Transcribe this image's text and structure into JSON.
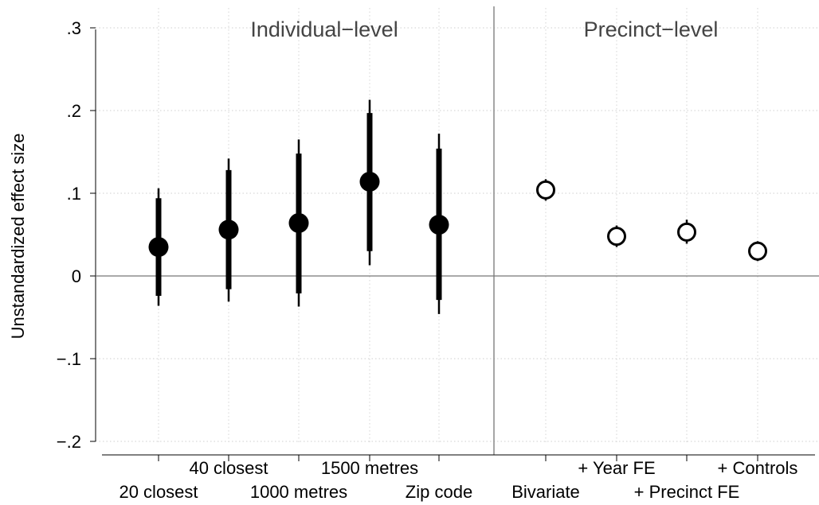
{
  "chart_data": {
    "type": "scatter",
    "ylabel": "Unstandardized effect size",
    "ylim": [
      -0.2,
      0.3
    ],
    "yticks": [
      -0.2,
      -0.1,
      0,
      0.1,
      0.2,
      0.3
    ],
    "ytick_labels": [
      "−.2",
      "−.1",
      "0",
      ".1",
      ".2",
      ".3"
    ],
    "grid": true,
    "panels": [
      {
        "title": "Individual−level",
        "marker": "filled-circle",
        "categories": [
          "20 closest",
          "40 closest",
          "1000 metres",
          "1500 metres",
          "Zip code"
        ],
        "points": [
          {
            "label": "20 closest",
            "estimate": 0.035,
            "ci95": [
              -0.024,
              0.094
            ],
            "ci99": [
              -0.036,
              0.106
            ]
          },
          {
            "label": "40 closest",
            "estimate": 0.056,
            "ci95": [
              -0.016,
              0.128
            ],
            "ci99": [
              -0.031,
              0.142
            ]
          },
          {
            "label": "1000 metres",
            "estimate": 0.064,
            "ci95": [
              -0.021,
              0.148
            ],
            "ci99": [
              -0.037,
              0.165
            ]
          },
          {
            "label": "1500 metres",
            "estimate": 0.114,
            "ci95": [
              0.03,
              0.197
            ],
            "ci99": [
              0.013,
              0.213
            ]
          },
          {
            "label": "Zip code",
            "estimate": 0.062,
            "ci95": [
              -0.029,
              0.154
            ],
            "ci99": [
              -0.046,
              0.172
            ]
          }
        ]
      },
      {
        "title": "Precinct−level",
        "marker": "hollow-circle",
        "categories": [
          "Bivariate",
          "+ Year FE",
          "+ Precinct FE",
          "+ Controls"
        ],
        "points": [
          {
            "label": "Bivariate",
            "estimate": 0.104,
            "ci95": [
              0.094,
              0.114
            ],
            "ci99": [
              0.091,
              0.117
            ]
          },
          {
            "label": "+ Year FE",
            "estimate": 0.048,
            "ci95": [
              0.038,
              0.058
            ],
            "ci99": [
              0.035,
              0.061
            ]
          },
          {
            "label": "+ Precinct FE",
            "estimate": 0.053,
            "ci95": [
              0.042,
              0.064
            ],
            "ci99": [
              0.039,
              0.068
            ]
          },
          {
            "label": "+ Controls",
            "estimate": 0.03,
            "ci95": [
              0.021,
              0.039
            ],
            "ci99": [
              0.018,
              0.042
            ]
          }
        ]
      }
    ]
  }
}
